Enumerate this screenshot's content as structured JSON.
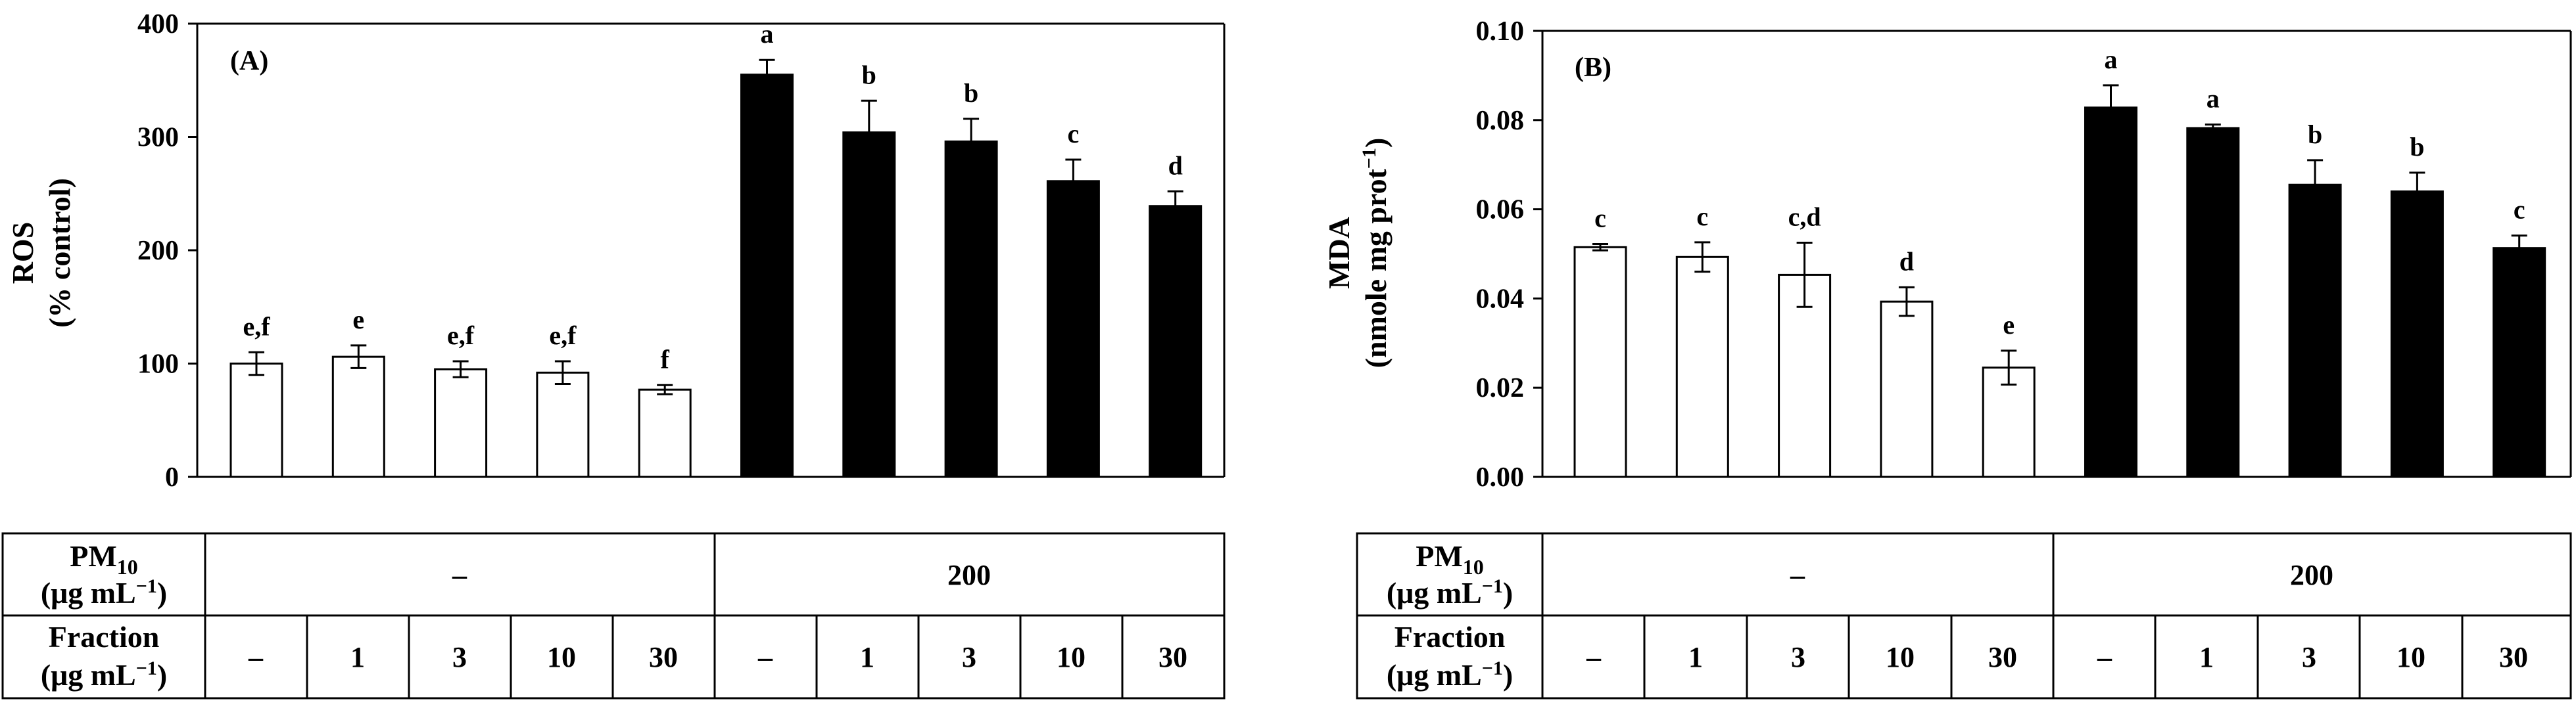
{
  "chart_data": [
    {
      "type": "bar",
      "panel_label": "(A)",
      "ylabel_line1": "ROS",
      "ylabel_line2": "(% control)",
      "ylim": [
        0,
        400
      ],
      "yticks": [
        "0",
        "100",
        "200",
        "300",
        "400"
      ],
      "categories": [
        "PM10 –, Fraction –",
        "PM10 –, Fraction 1",
        "PM10 –, Fraction 3",
        "PM10 –, Fraction 10",
        "PM10 –, Fraction 30",
        "PM10 200, Fraction –",
        "PM10 200, Fraction 1",
        "PM10 200, Fraction 3",
        "PM10 200, Fraction 10",
        "PM10 200, Fraction 30"
      ],
      "values": [
        100,
        106,
        95,
        92,
        77,
        355,
        304,
        296,
        261,
        239
      ],
      "errors": [
        10,
        10,
        7,
        10,
        4,
        13,
        28,
        20,
        19,
        13
      ],
      "fills": [
        "#ffffff",
        "#ffffff",
        "#ffffff",
        "#ffffff",
        "#ffffff",
        "#000000",
        "#000000",
        "#000000",
        "#000000",
        "#000000"
      ],
      "significance_letters": [
        "e,f",
        "e",
        "e,f",
        "e,f",
        "f",
        "a",
        "b",
        "b",
        "c",
        "d"
      ]
    },
    {
      "type": "bar",
      "panel_label": "(B)",
      "ylabel_line1": "MDA",
      "ylabel_line2_pre": "(nmole mg prot",
      "ylabel_line2_sup": "−1",
      "ylabel_line2_post": ")",
      "ylim": [
        0,
        0.1
      ],
      "yticks": [
        "0.00",
        "0.02",
        "0.04",
        "0.06",
        "0.08",
        "0.10"
      ],
      "categories": [
        "PM10 –, Fraction –",
        "PM10 –, Fraction 1",
        "PM10 –, Fraction 3",
        "PM10 –, Fraction 10",
        "PM10 –, Fraction 30",
        "PM10 200, Fraction –",
        "PM10 200, Fraction 1",
        "PM10 200, Fraction 3",
        "PM10 200, Fraction 10",
        "PM10 200, Fraction 30"
      ],
      "values": [
        0.0515,
        0.0493,
        0.0453,
        0.0393,
        0.0245,
        0.0828,
        0.0782,
        0.0655,
        0.064,
        0.0513
      ],
      "errors": [
        0.0007,
        0.0033,
        0.0072,
        0.0032,
        0.0038,
        0.005,
        0.0008,
        0.0055,
        0.0042,
        0.0028
      ],
      "fills": [
        "#ffffff",
        "#ffffff",
        "#ffffff",
        "#ffffff",
        "#ffffff",
        "#000000",
        "#000000",
        "#000000",
        "#000000",
        "#000000"
      ],
      "significance_letters": [
        "c",
        "c",
        "c,d",
        "d",
        "e",
        "a",
        "a",
        "b",
        "b",
        "c"
      ]
    }
  ],
  "table": {
    "pm_label": "PM",
    "pm_sub": "10",
    "unit_pre": "(μg mL",
    "unit_sup": "−1",
    "unit_post": ")",
    "fraction_label": "Fraction",
    "pm_groups": [
      "–",
      "200"
    ],
    "fractions": [
      "–",
      "1",
      "3",
      "10",
      "30",
      "–",
      "1",
      "3",
      "10",
      "30"
    ]
  }
}
